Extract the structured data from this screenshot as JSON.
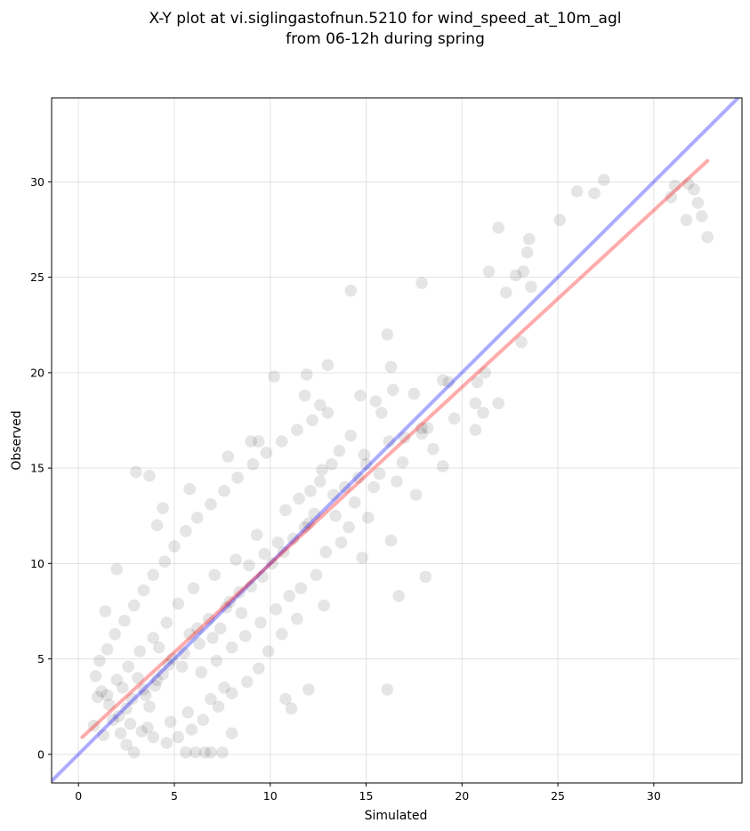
{
  "chart_data": {
    "type": "scatter",
    "title": [
      "X-Y plot at vi.siglingastofnun.5210 for wind_speed_at_10m_agl",
      "from 06-12h during spring"
    ],
    "xlabel": "Simulated",
    "ylabel": "Observed",
    "xlim": [
      -1.4,
      34.6
    ],
    "ylim": [
      -1.5,
      34.4
    ],
    "xticks": [
      0,
      5,
      10,
      15,
      20,
      25,
      30
    ],
    "yticks": [
      0,
      5,
      10,
      15,
      20,
      25,
      30
    ],
    "grid": true,
    "point_color": "#000000",
    "identity_line": {
      "x": [
        -1.4,
        34.6
      ],
      "y": [
        -1.4,
        34.6
      ],
      "color": "#0000ff"
    },
    "fit_line": {
      "x": [
        0.2,
        32.8
      ],
      "y": [
        0.9,
        31.1
      ],
      "color": "#ff0000"
    },
    "points": [
      [
        27.4,
        30.1
      ],
      [
        26.0,
        29.5
      ],
      [
        26.9,
        29.4
      ],
      [
        31.1,
        29.8
      ],
      [
        31.8,
        29.9
      ],
      [
        32.1,
        29.6
      ],
      [
        32.3,
        28.9
      ],
      [
        32.5,
        28.2
      ],
      [
        32.8,
        27.1
      ],
      [
        31.7,
        28.0
      ],
      [
        30.9,
        29.2
      ],
      [
        25.1,
        28.0
      ],
      [
        21.9,
        27.6
      ],
      [
        23.5,
        27.0
      ],
      [
        23.4,
        26.3
      ],
      [
        22.8,
        25.1
      ],
      [
        23.2,
        25.3
      ],
      [
        21.4,
        25.3
      ],
      [
        23.6,
        24.5
      ],
      [
        22.3,
        24.2
      ],
      [
        14.2,
        24.3
      ],
      [
        17.9,
        24.7
      ],
      [
        16.1,
        22.0
      ],
      [
        23.1,
        21.6
      ],
      [
        20.8,
        19.5
      ],
      [
        21.2,
        20.0
      ],
      [
        19.0,
        19.6
      ],
      [
        21.9,
        18.4
      ],
      [
        20.7,
        18.4
      ],
      [
        21.1,
        17.9
      ],
      [
        20.7,
        17.0
      ],
      [
        18.2,
        17.1
      ],
      [
        17.9,
        16.8
      ],
      [
        18.1,
        9.3
      ],
      [
        16.7,
        8.3
      ],
      [
        16.1,
        3.4
      ],
      [
        16.3,
        20.3
      ],
      [
        13.0,
        20.4
      ],
      [
        11.9,
        19.9
      ],
      [
        10.2,
        19.8
      ],
      [
        11.8,
        18.8
      ],
      [
        12.6,
        18.3
      ],
      [
        2.0,
        9.7
      ],
      [
        3.0,
        14.8
      ],
      [
        3.7,
        14.6
      ],
      [
        1.4,
        7.5
      ],
      [
        8.0,
        1.1
      ],
      [
        6.1,
        0.1
      ],
      [
        5.6,
        0.1
      ],
      [
        6.6,
        0.1
      ],
      [
        6.9,
        0.1
      ],
      [
        7.5,
        0.1
      ],
      [
        2.9,
        0.1
      ],
      [
        12.0,
        3.4
      ],
      [
        11.1,
        2.4
      ],
      [
        10.8,
        2.9
      ],
      [
        9.0,
        16.4
      ],
      [
        9.4,
        16.4
      ],
      [
        7.8,
        15.6
      ],
      [
        5.8,
        13.9
      ],
      [
        4.4,
        12.9
      ],
      [
        4.1,
        12.0
      ],
      [
        1.0,
        3.0
      ],
      [
        0.8,
        1.5
      ],
      [
        1.3,
        1.0
      ],
      [
        2.5,
        0.5
      ],
      [
        17.6,
        13.6
      ],
      [
        19.0,
        15.1
      ],
      [
        17.0,
        16.6
      ],
      [
        15.5,
        18.5
      ],
      [
        14.7,
        18.8
      ],
      [
        19.3,
        19.5
      ],
      [
        17.5,
        18.9
      ],
      [
        16.4,
        19.1
      ],
      [
        15.8,
        17.9
      ],
      [
        14.2,
        16.7
      ],
      [
        13.6,
        15.9
      ],
      [
        14.6,
        14.5
      ],
      [
        15.4,
        14.0
      ],
      [
        16.6,
        14.3
      ],
      [
        16.9,
        15.3
      ],
      [
        18.5,
        16.0
      ],
      [
        19.6,
        17.6
      ],
      [
        17.9,
        17.1
      ],
      [
        16.2,
        16.4
      ],
      [
        14.9,
        15.7
      ],
      [
        13.2,
        15.2
      ],
      [
        12.6,
        14.3
      ],
      [
        12.1,
        13.8
      ],
      [
        13.4,
        12.5
      ],
      [
        14.1,
        11.9
      ],
      [
        15.1,
        12.4
      ],
      [
        16.3,
        11.2
      ],
      [
        14.8,
        10.3
      ],
      [
        13.7,
        11.1
      ],
      [
        12.9,
        10.6
      ],
      [
        12.4,
        9.4
      ],
      [
        11.6,
        8.7
      ],
      [
        12.8,
        7.8
      ],
      [
        11.4,
        7.1
      ],
      [
        10.6,
        6.3
      ],
      [
        9.9,
        5.4
      ],
      [
        9.4,
        4.5
      ],
      [
        8.8,
        3.8
      ],
      [
        8.0,
        3.2
      ],
      [
        7.3,
        2.5
      ],
      [
        6.5,
        1.8
      ],
      [
        5.9,
        1.3
      ],
      [
        5.2,
        0.9
      ],
      [
        4.6,
        0.6
      ],
      [
        3.9,
        0.9
      ],
      [
        3.3,
        1.2
      ],
      [
        2.7,
        1.6
      ],
      [
        2.1,
        2.0
      ],
      [
        1.6,
        2.6
      ],
      [
        1.2,
        3.3
      ],
      [
        0.9,
        4.1
      ],
      [
        1.1,
        4.9
      ],
      [
        1.5,
        5.5
      ],
      [
        1.9,
        6.3
      ],
      [
        2.4,
        7.0
      ],
      [
        2.9,
        7.8
      ],
      [
        3.4,
        8.6
      ],
      [
        3.9,
        9.4
      ],
      [
        4.5,
        10.1
      ],
      [
        5.0,
        10.9
      ],
      [
        5.6,
        11.7
      ],
      [
        6.2,
        12.4
      ],
      [
        6.9,
        13.1
      ],
      [
        7.6,
        13.8
      ],
      [
        8.3,
        14.5
      ],
      [
        9.1,
        15.2
      ],
      [
        9.8,
        15.8
      ],
      [
        10.6,
        16.4
      ],
      [
        11.4,
        17.0
      ],
      [
        12.2,
        17.5
      ],
      [
        13.0,
        17.9
      ],
      [
        4.0,
        3.6
      ],
      [
        3.5,
        3.1
      ],
      [
        4.4,
        4.2
      ],
      [
        2.8,
        2.9
      ],
      [
        3.1,
        4.0
      ],
      [
        4.9,
        5.0
      ],
      [
        5.4,
        4.6
      ],
      [
        3.7,
        2.5
      ],
      [
        2.3,
        3.5
      ],
      [
        4.2,
        5.6
      ],
      [
        5.8,
        6.3
      ],
      [
        6.3,
        5.8
      ],
      [
        6.8,
        7.1
      ],
      [
        7.4,
        6.6
      ],
      [
        7.9,
        8.0
      ],
      [
        8.5,
        7.4
      ],
      [
        9.0,
        8.8
      ],
      [
        9.6,
        9.3
      ],
      [
        10.1,
        10.0
      ],
      [
        10.7,
        10.6
      ],
      [
        11.2,
        11.3
      ],
      [
        11.8,
        11.9
      ],
      [
        12.3,
        12.6
      ],
      [
        8.2,
        10.2
      ],
      [
        9.3,
        11.5
      ],
      [
        7.1,
        9.4
      ],
      [
        6.0,
        8.7
      ],
      [
        5.2,
        7.9
      ],
      [
        4.6,
        6.9
      ],
      [
        3.9,
        6.1
      ],
      [
        3.2,
        5.4
      ],
      [
        2.6,
        4.6
      ],
      [
        2.0,
        3.9
      ],
      [
        1.5,
        3.1
      ],
      [
        6.4,
        4.3
      ],
      [
        7.2,
        4.9
      ],
      [
        8.0,
        5.6
      ],
      [
        8.7,
        6.2
      ],
      [
        9.5,
        6.9
      ],
      [
        10.3,
        7.6
      ],
      [
        11.0,
        8.3
      ],
      [
        7.6,
        3.5
      ],
      [
        6.9,
        2.9
      ],
      [
        5.7,
        2.2
      ],
      [
        4.8,
        1.7
      ],
      [
        3.6,
        1.4
      ],
      [
        2.2,
        1.1
      ],
      [
        10.8,
        12.8
      ],
      [
        11.5,
        13.4
      ],
      [
        12.7,
        14.9
      ],
      [
        13.9,
        14.0
      ],
      [
        14.4,
        13.2
      ],
      [
        15.0,
        15.2
      ],
      [
        15.7,
        14.7
      ],
      [
        13.3,
        13.6
      ],
      [
        12.0,
        12.1
      ],
      [
        10.4,
        11.1
      ],
      [
        9.7,
        10.5
      ],
      [
        8.9,
        9.9
      ],
      [
        8.4,
        8.5
      ],
      [
        7.7,
        7.7
      ],
      [
        7.0,
        6.1
      ],
      [
        6.2,
        6.6
      ],
      [
        5.5,
        5.3
      ],
      [
        4.7,
        4.7
      ],
      [
        4.1,
        3.9
      ],
      [
        3.4,
        3.4
      ],
      [
        2.5,
        2.4
      ],
      [
        1.8,
        1.8
      ]
    ]
  }
}
